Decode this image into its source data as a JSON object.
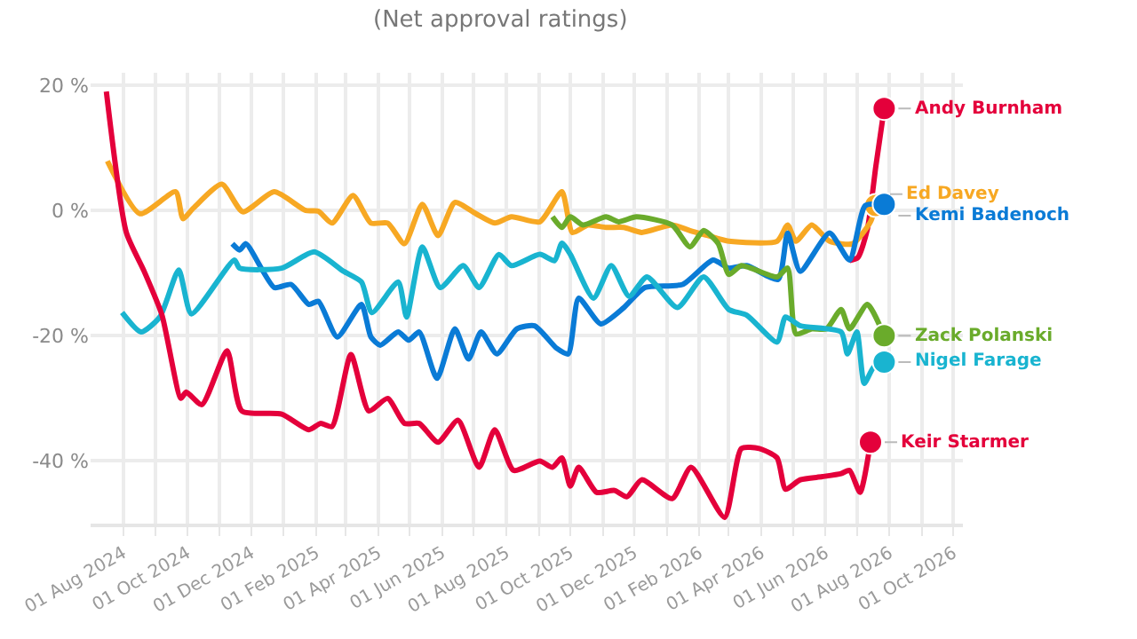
{
  "chart_data": {
    "type": "line",
    "subtitle": "(Net approval ratings)",
    "xlim": [
      "2024-07-01",
      "2026-10-10"
    ],
    "xticks": [
      {
        "value": "2024-08-01",
        "label": "01 Aug 2024"
      },
      {
        "value": "2024-09-01",
        "label": null
      },
      {
        "value": "2024-10-01",
        "label": "01 Oct 2024"
      },
      {
        "value": "2024-11-01",
        "label": null
      },
      {
        "value": "2024-12-01",
        "label": "01 Dec 2024"
      },
      {
        "value": "2025-01-01",
        "label": null
      },
      {
        "value": "2025-02-01",
        "label": "01 Feb 2025"
      },
      {
        "value": "2025-03-01",
        "label": null
      },
      {
        "value": "2025-04-01",
        "label": "01 Apr 2025"
      },
      {
        "value": "2025-05-01",
        "label": null
      },
      {
        "value": "2025-06-01",
        "label": "01 Jun 2025"
      },
      {
        "value": "2025-07-01",
        "label": null
      },
      {
        "value": "2025-08-01",
        "label": "01 Aug 2025"
      },
      {
        "value": "2025-09-01",
        "label": null
      },
      {
        "value": "2025-10-01",
        "label": "01 Oct 2025"
      },
      {
        "value": "2025-11-01",
        "label": null
      },
      {
        "value": "2025-12-01",
        "label": "01 Dec 2025"
      },
      {
        "value": "2026-01-01",
        "label": null
      },
      {
        "value": "2026-02-01",
        "label": "01 Feb 2026"
      },
      {
        "value": "2026-03-01",
        "label": null
      },
      {
        "value": "2026-04-01",
        "label": "01 Apr 2026"
      },
      {
        "value": "2026-05-01",
        "label": null
      },
      {
        "value": "2026-06-01",
        "label": "01 Jun 2026"
      },
      {
        "value": "2026-07-01",
        "label": null
      },
      {
        "value": "2026-08-01",
        "label": "01 Aug 2026"
      },
      {
        "value": "2026-09-01",
        "label": null
      },
      {
        "value": "2026-10-01",
        "label": "01 Oct 2026"
      }
    ],
    "ylim": [
      -50,
      22
    ],
    "yticks": [
      {
        "value": -40,
        "label": "-40 %"
      },
      {
        "value": -20,
        "label": "-20 %"
      },
      {
        "value": 0,
        "label": "0 %"
      },
      {
        "value": 20,
        "label": "20 %"
      }
    ],
    "grid": true,
    "legend": false,
    "line_style": "solid",
    "series": [
      {
        "name": "Andy Burnham",
        "color": "#e4003b",
        "x": [
          "2026-06-24",
          "2026-07-02",
          "2026-07-11",
          "2026-07-19",
          "2026-07-27"
        ],
        "values": [
          -8,
          -7.5,
          -3,
          7,
          16.3
        ]
      },
      {
        "name": "Ed Davey",
        "color": "#f7a823",
        "x": [
          "2024-07-17",
          "2024-08-17",
          "2024-09-20",
          "2024-09-27",
          "2024-10-07",
          "2024-11-03",
          "2024-11-23",
          "2024-12-23",
          "2025-01-22",
          "2025-02-03",
          "2025-02-16",
          "2025-03-08",
          "2025-03-25",
          "2025-04-10",
          "2025-04-26",
          "2025-05-13",
          "2025-05-28",
          "2025-06-13",
          "2025-07-03",
          "2025-07-21",
          "2025-08-06",
          "2025-09-02",
          "2025-09-23",
          "2025-10-03",
          "2025-10-18",
          "2025-11-04",
          "2025-11-21",
          "2025-12-08",
          "2026-01-06",
          "2026-01-23",
          "2026-02-09",
          "2026-03-01",
          "2026-04-16",
          "2026-04-26",
          "2026-05-04",
          "2026-05-19",
          "2026-06-05",
          "2026-06-27",
          "2026-07-14",
          "2026-07-19"
        ],
        "values": [
          7.9,
          -0.5,
          3,
          -1.3,
          0.4,
          4.2,
          -0.2,
          3,
          0,
          -0.1,
          -2,
          2.4,
          -2,
          -2,
          -5.3,
          1,
          -4,
          1.3,
          -0.5,
          -2,
          -1,
          -1.8,
          3,
          -3.5,
          -2.3,
          -2.7,
          -2.7,
          -3.5,
          -2.3,
          -3.2,
          -4,
          -4.9,
          -4.9,
          -2.3,
          -4.9,
          -2.3,
          -4.9,
          -5.3,
          -1.8,
          0.8
        ]
      },
      {
        "name": "Kemi Badenoch",
        "color": "#0a7bd6",
        "x": [
          "2024-11-13",
          "2024-11-20",
          "2024-11-26",
          "2024-12-23",
          "2025-01-08",
          "2025-01-25",
          "2025-02-03",
          "2025-02-21",
          "2025-03-16",
          "2025-03-25",
          "2025-04-03",
          "2025-04-20",
          "2025-04-30",
          "2025-05-10",
          "2025-05-27",
          "2025-06-13",
          "2025-06-26",
          "2025-07-08",
          "2025-07-23",
          "2025-08-11",
          "2025-08-28",
          "2025-09-18",
          "2025-09-29",
          "2025-10-09",
          "2025-10-30",
          "2025-11-21",
          "2025-12-11",
          "2026-01-16",
          "2026-02-14",
          "2026-03-01",
          "2026-03-18",
          "2026-04-17",
          "2026-04-26",
          "2026-05-08",
          "2026-06-05",
          "2026-06-24",
          "2026-07-09",
          "2026-07-27"
        ],
        "values": [
          -5.3,
          -6.3,
          -5.3,
          -12.3,
          -11.8,
          -15,
          -14.5,
          -20.2,
          -15,
          -20.2,
          -21.5,
          -19.4,
          -20.7,
          -19.4,
          -26.8,
          -18.9,
          -23.7,
          -19.4,
          -22.9,
          -18.9,
          -18.4,
          -22,
          -22.9,
          -14,
          -18.1,
          -15.5,
          -12.3,
          -11.8,
          -7.9,
          -9.2,
          -8.8,
          -11,
          -3.6,
          -9.7,
          -3.6,
          -7.9,
          0.8,
          1
        ]
      },
      {
        "name": "Zack Polanski",
        "color": "#6aab2b",
        "x": [
          "2025-09-14",
          "2025-09-23",
          "2025-10-01",
          "2025-10-13",
          "2025-11-04",
          "2025-11-16",
          "2025-12-03",
          "2026-01-06",
          "2026-01-23",
          "2026-02-05",
          "2026-02-19",
          "2026-03-01",
          "2026-03-13",
          "2026-04-16",
          "2026-04-26",
          "2026-05-04",
          "2026-05-19",
          "2026-06-02",
          "2026-06-16",
          "2026-06-24",
          "2026-07-11",
          "2026-07-27"
        ],
        "values": [
          -1,
          -2.7,
          -1,
          -2.3,
          -1,
          -1.8,
          -1,
          -2.3,
          -5.8,
          -3.2,
          -5.3,
          -10.2,
          -8.8,
          -10.6,
          -9.2,
          -19.7,
          -18.9,
          -18.9,
          -15.8,
          -18.9,
          -15,
          -20
        ]
      },
      {
        "name": "Nigel Farage",
        "color": "#19b4d0",
        "x": [
          "2024-07-31",
          "2024-08-18",
          "2024-09-05",
          "2024-09-23",
          "2024-10-05",
          "2024-11-15",
          "2024-11-20",
          "2024-12-30",
          "2025-01-30",
          "2025-02-27",
          "2025-03-16",
          "2025-03-26",
          "2025-04-20",
          "2025-04-28",
          "2025-05-13",
          "2025-05-30",
          "2025-06-21",
          "2025-07-06",
          "2025-07-25",
          "2025-08-06",
          "2025-09-02",
          "2025-09-16",
          "2025-09-23",
          "2025-10-01",
          "2025-10-23",
          "2025-11-09",
          "2025-11-26",
          "2025-12-13",
          "2026-01-11",
          "2026-02-05",
          "2026-03-01",
          "2026-03-18",
          "2026-04-16",
          "2026-04-24",
          "2026-05-08",
          "2026-06-16",
          "2026-06-22",
          "2026-07-01",
          "2026-07-08",
          "2026-07-17",
          "2026-07-27"
        ],
        "values": [
          -16.3,
          -19.4,
          -17,
          -9.5,
          -16.5,
          -7.9,
          -9.2,
          -9.2,
          -6.6,
          -9.7,
          -11.4,
          -16.3,
          -11.4,
          -17,
          -5.8,
          -12.3,
          -8.8,
          -12.3,
          -7,
          -8.8,
          -7,
          -8,
          -5.2,
          -7,
          -14,
          -8.8,
          -13.7,
          -10.6,
          -15.5,
          -10.6,
          -15.8,
          -16.7,
          -21,
          -17,
          -18.4,
          -19.4,
          -22.9,
          -19.4,
          -27.6,
          -25,
          -24.2
        ]
      },
      {
        "name": "Keir Starmer",
        "color": "#e4003b",
        "x": [
          "2024-07-16",
          "2024-08-04",
          "2024-08-21",
          "2024-09-07",
          "2024-09-25",
          "2024-09-30",
          "2024-10-15",
          "2024-11-08",
          "2024-11-22",
          "2024-12-30",
          "2025-01-25",
          "2025-02-05",
          "2025-02-16",
          "2025-03-06",
          "2025-03-23",
          "2025-04-10",
          "2025-04-26",
          "2025-05-10",
          "2025-05-28",
          "2025-06-16",
          "2025-07-06",
          "2025-07-21",
          "2025-08-08",
          "2025-09-02",
          "2025-09-14",
          "2025-09-23",
          "2025-10-01",
          "2025-10-09",
          "2025-10-26",
          "2025-11-12",
          "2025-11-24",
          "2025-12-08",
          "2026-01-06",
          "2026-01-24",
          "2026-02-25",
          "2026-03-13",
          "2026-03-30",
          "2026-04-16",
          "2026-04-24",
          "2026-05-08",
          "2026-05-29",
          "2026-06-16",
          "2026-06-24",
          "2026-07-04",
          "2026-07-14"
        ],
        "values": [
          19,
          -3.5,
          -9.7,
          -16.7,
          -30,
          -29,
          -31,
          -22.4,
          -32,
          -32.5,
          -35,
          -34,
          -34.5,
          -23,
          -32,
          -30,
          -34,
          -34,
          -37,
          -33.5,
          -41,
          -35,
          -41.5,
          -40,
          -41,
          -39.5,
          -44,
          -41,
          -45,
          -44.7,
          -45.7,
          -43,
          -46,
          -41,
          -49,
          -38,
          -38,
          -39.5,
          -44.5,
          -43,
          -42.5,
          -42,
          -41.5,
          -45,
          -37
        ]
      }
    ]
  }
}
